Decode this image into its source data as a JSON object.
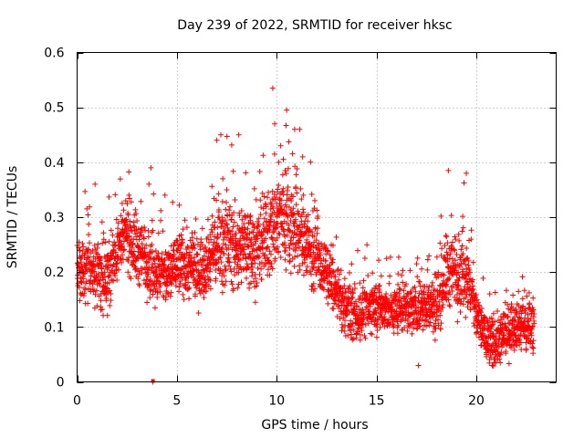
{
  "chart_data": {
    "type": "scatter",
    "title": "Day 239 of 2022, SRMTID for receiver hksc",
    "xlabel": "GPS time / hours",
    "ylabel": "SRMTID / TECUs",
    "xlim": [
      0,
      24
    ],
    "ylim": [
      0,
      0.6
    ],
    "x_ticks": [
      0,
      5,
      10,
      15,
      20
    ],
    "y_ticks": [
      0,
      0.1,
      0.2,
      0.3,
      0.4,
      0.5,
      0.6
    ],
    "x_tick_labels": [
      "0",
      "5",
      "10",
      "15",
      "20"
    ],
    "y_tick_labels": [
      "0",
      "0.1",
      "0.2",
      "0.3",
      "0.4",
      "0.5",
      "0.6"
    ],
    "grid": true,
    "marker": "+",
    "color": "#ff0000",
    "series": [
      {
        "name": "SRMTID",
        "trend": {
          "x": [
            0,
            0.5,
            1,
            1.5,
            2,
            2.5,
            3,
            3.5,
            4,
            4.5,
            5,
            5.5,
            6,
            6.5,
            7,
            7.5,
            8,
            8.5,
            9,
            9.5,
            10,
            10.5,
            11,
            11.5,
            12,
            12.5,
            13,
            13.5,
            14,
            14.5,
            15,
            15.5,
            16,
            16.5,
            17,
            17.5,
            18,
            18.5,
            19,
            19.5,
            20,
            20.5,
            21,
            21.5,
            22,
            22.5,
            22.9
          ],
          "center": [
            0.2,
            0.21,
            0.2,
            0.19,
            0.24,
            0.27,
            0.24,
            0.22,
            0.2,
            0.19,
            0.22,
            0.21,
            0.2,
            0.22,
            0.25,
            0.26,
            0.24,
            0.25,
            0.24,
            0.26,
            0.3,
            0.3,
            0.27,
            0.26,
            0.22,
            0.2,
            0.16,
            0.13,
            0.12,
            0.13,
            0.14,
            0.13,
            0.13,
            0.14,
            0.13,
            0.14,
            0.14,
            0.2,
            0.2,
            0.2,
            0.12,
            0.08,
            0.07,
            0.09,
            0.11,
            0.1,
            0.11
          ],
          "spread": [
            0.05,
            0.05,
            0.05,
            0.05,
            0.05,
            0.05,
            0.06,
            0.05,
            0.05,
            0.05,
            0.05,
            0.05,
            0.05,
            0.05,
            0.06,
            0.07,
            0.06,
            0.06,
            0.06,
            0.07,
            0.08,
            0.08,
            0.07,
            0.06,
            0.05,
            0.04,
            0.04,
            0.04,
            0.04,
            0.04,
            0.04,
            0.04,
            0.04,
            0.04,
            0.04,
            0.04,
            0.05,
            0.06,
            0.06,
            0.06,
            0.04,
            0.04,
            0.04,
            0.04,
            0.04,
            0.04,
            0.04
          ]
        },
        "points": [
          [
            9.8,
            0.535
          ],
          [
            10.5,
            0.495
          ],
          [
            10.9,
            0.46
          ],
          [
            7.2,
            0.45
          ],
          [
            8.1,
            0.45
          ],
          [
            7.0,
            0.44
          ],
          [
            9.9,
            0.47
          ],
          [
            10.2,
            0.43
          ],
          [
            11.3,
            0.41
          ],
          [
            3.7,
            0.39
          ],
          [
            18.6,
            0.385
          ],
          [
            19.5,
            0.38
          ],
          [
            7.3,
            0.37
          ],
          [
            10.1,
            0.4
          ],
          [
            2.6,
            0.34
          ],
          [
            3.6,
            0.36
          ],
          [
            0.9,
            0.36
          ],
          [
            4.4,
            0.34
          ],
          [
            3.8,
            0.0
          ],
          [
            20.8,
            0.03
          ],
          [
            21.2,
            0.035
          ],
          [
            17.1,
            0.03
          ],
          [
            20.5,
            0.05
          ]
        ]
      }
    ]
  }
}
